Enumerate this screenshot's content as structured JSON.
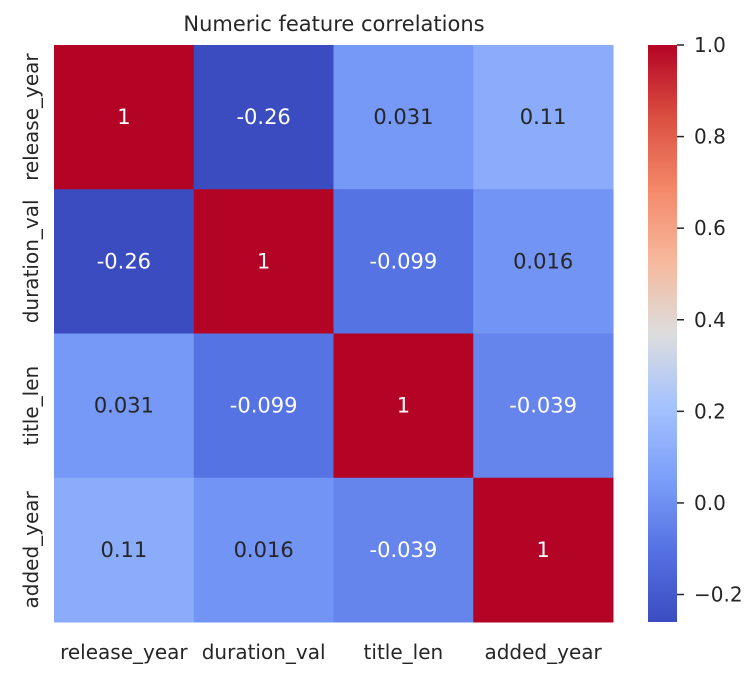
{
  "chart_data": {
    "type": "heatmap",
    "title": "Numeric feature correlations",
    "rows": [
      "release_year",
      "duration_val",
      "title_len",
      "added_year"
    ],
    "columns": [
      "release_year",
      "duration_val",
      "title_len",
      "added_year"
    ],
    "values": [
      [
        1,
        -0.26,
        0.031,
        0.11
      ],
      [
        -0.26,
        1,
        -0.099,
        0.016
      ],
      [
        0.031,
        -0.099,
        1,
        -0.039
      ],
      [
        0.11,
        0.016,
        -0.039,
        1
      ]
    ],
    "annotations": [
      [
        "1",
        "-0.26",
        "0.031",
        "0.11"
      ],
      [
        "-0.26",
        "1",
        "-0.099",
        "0.016"
      ],
      [
        "0.031",
        "-0.099",
        "1",
        "-0.039"
      ],
      [
        "0.11",
        "0.016",
        "-0.039",
        "1"
      ]
    ],
    "colormap": "coolwarm",
    "vmin": -0.26,
    "vmax": 1.0,
    "colorbar": {
      "ticks": [
        1.0,
        0.8,
        0.6,
        0.4,
        0.2,
        0.0,
        -0.2
      ],
      "tick_labels": [
        "1.0",
        "0.8",
        "0.6",
        "0.4",
        "0.2",
        "0.0",
        "−0.2"
      ]
    }
  }
}
